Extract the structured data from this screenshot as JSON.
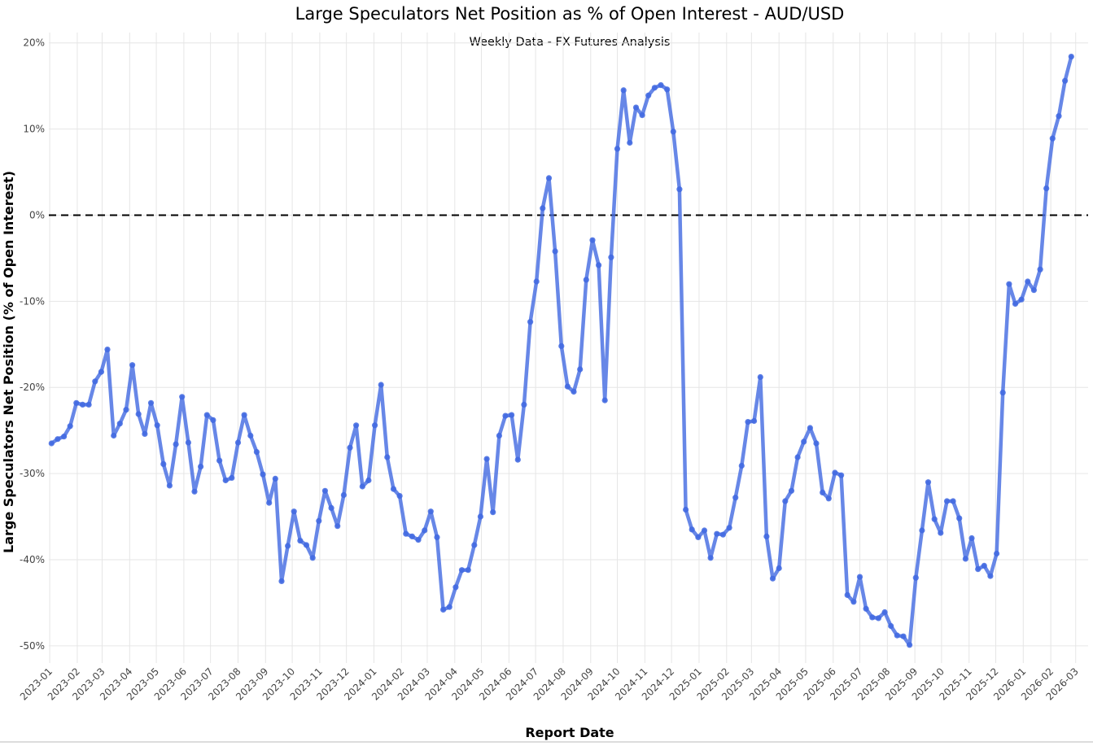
{
  "chart_data": {
    "type": "line",
    "title": "Large Speculators Net Position as % of Open Interest - AUD/USD",
    "subtitle": "Weekly Data - FX Futures Analysis",
    "xlabel": "Report Date",
    "ylabel": "Large Speculators Net Position (% of Open Interest)",
    "x_tick_labels": [
      "2023-01",
      "2023-02",
      "2023-03",
      "2023-04",
      "2023-05",
      "2023-06",
      "2023-07",
      "2023-08",
      "2023-09",
      "2023-10",
      "2023-11",
      "2023-12",
      "2024-01",
      "2024-02",
      "2024-03",
      "2024-04",
      "2024-05",
      "2024-06",
      "2024-07",
      "2024-08",
      "2024-09",
      "2024-10",
      "2024-11",
      "2024-12",
      "2025-01",
      "2025-02",
      "2025-03",
      "2025-04",
      "2025-05",
      "2025-06",
      "2025-07",
      "2025-08",
      "2025-09",
      "2025-10",
      "2025-11",
      "2025-12",
      "2026-01",
      "2026-02",
      "2026-03"
    ],
    "y_tick_labels": [
      "-50%",
      "-40%",
      "-30%",
      "-20%",
      "-10%",
      "0%",
      "10%",
      "20%"
    ],
    "y_ticks": [
      -50,
      -40,
      -30,
      -20,
      -10,
      0,
      10,
      20
    ],
    "ylim": [
      -52,
      21.2
    ],
    "reference_line": {
      "y": 0,
      "style": "dashed",
      "color": "#000000"
    },
    "grid": true,
    "line_color": "#4169e1",
    "series": [
      {
        "name": "",
        "frequency": "weekly",
        "start_date": "2023-01-03",
        "values": [
          -26.5,
          -26.0,
          -25.7,
          -24.5,
          -21.8,
          -22.0,
          -22.0,
          -19.3,
          -18.2,
          -15.6,
          -25.6,
          -24.2,
          -22.6,
          -17.4,
          -23.1,
          -25.4,
          -21.8,
          -24.4,
          -28.9,
          -31.4,
          -26.6,
          -21.1,
          -26.4,
          -32.1,
          -29.2,
          -23.2,
          -23.8,
          -28.5,
          -30.8,
          -30.5,
          -26.4,
          -23.2,
          -25.6,
          -27.5,
          -30.1,
          -33.4,
          -30.6,
          -42.5,
          -38.4,
          -34.4,
          -37.8,
          -38.3,
          -39.8,
          -35.5,
          -32.0,
          -34.0,
          -36.1,
          -32.5,
          -27.0,
          -24.4,
          -31.5,
          -30.8,
          -24.4,
          -19.7,
          -28.1,
          -31.8,
          -32.6,
          -37.0,
          -37.3,
          -37.7,
          -36.6,
          -34.4,
          -37.4,
          -45.8,
          -45.5,
          -43.2,
          -41.2,
          -41.2,
          -38.3,
          -35.0,
          -28.3,
          -34.5,
          -25.6,
          -23.3,
          -23.2,
          -28.4,
          -22.0,
          -12.4,
          -7.7,
          0.8,
          4.3,
          -4.2,
          -15.2,
          -19.9,
          -20.5,
          -17.9,
          -7.5,
          -2.9,
          -5.8,
          -21.5,
          -4.9,
          7.7,
          14.5,
          8.4,
          12.5,
          11.6,
          13.9,
          14.8,
          15.1,
          14.6,
          9.7,
          3.0,
          -34.2,
          -36.5,
          -37.4,
          -36.6,
          -39.8,
          -37.0,
          -37.1,
          -36.3,
          -32.8,
          -29.1,
          -24.0,
          -23.9,
          -18.8,
          -37.3,
          -42.2,
          -41.0,
          -33.2,
          -32.0,
          -28.1,
          -26.3,
          -24.7,
          -26.5,
          -32.2,
          -32.9,
          -29.9,
          -30.2,
          -44.1,
          -44.9,
          -42.0,
          -45.7,
          -46.7,
          -46.8,
          -46.1,
          -47.7,
          -48.8,
          -48.9,
          -49.9,
          -42.1,
          -36.6,
          -31.0,
          -35.3,
          -36.9,
          -33.2,
          -33.2,
          -35.2,
          -39.9,
          -37.5,
          -41.1,
          -40.7,
          -41.9,
          -39.3,
          -20.6,
          -8.0,
          -10.3,
          -9.8,
          -7.7,
          -8.7,
          -6.3,
          3.1,
          8.9,
          11.5,
          15.6,
          18.4
        ]
      }
    ]
  }
}
